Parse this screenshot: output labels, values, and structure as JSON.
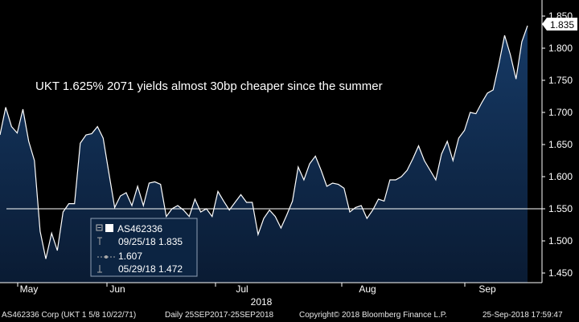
{
  "chart_data": {
    "type": "area",
    "annotation": "UKT 1.625% 2071 yields almost 30bp cheaper since the summer",
    "y_ticks": [
      "1.850",
      "1.800",
      "1.750",
      "1.700",
      "1.650",
      "1.600",
      "1.550",
      "1.500",
      "1.450"
    ],
    "ylim": [
      1.43,
      1.855
    ],
    "x_ticks": [
      "May",
      "Jun",
      "Jul",
      "Aug",
      "Sep"
    ],
    "year_label": "2018",
    "reference_line": 1.55,
    "last_value_label": "1.835",
    "legend": {
      "series_name": "AS462336",
      "high": "09/25/18 1.835",
      "mean": "1.607",
      "low": "05/29/18 1.472"
    },
    "series": [
      {
        "name": "AS462336",
        "values": [
          1.665,
          1.708,
          1.678,
          1.668,
          1.705,
          1.655,
          1.625,
          1.515,
          1.472,
          1.512,
          1.485,
          1.545,
          1.558,
          1.558,
          1.652,
          1.665,
          1.667,
          1.678,
          1.66,
          1.605,
          1.552,
          1.57,
          1.575,
          1.555,
          1.585,
          1.555,
          1.59,
          1.592,
          1.588,
          1.538,
          1.55,
          1.555,
          1.548,
          1.538,
          1.565,
          1.545,
          1.55,
          1.538,
          1.577,
          1.562,
          1.548,
          1.56,
          1.572,
          1.56,
          1.56,
          1.51,
          1.535,
          1.548,
          1.538,
          1.52,
          1.54,
          1.562,
          1.615,
          1.595,
          1.62,
          1.632,
          1.61,
          1.585,
          1.59,
          1.588,
          1.582,
          1.545,
          1.552,
          1.555,
          1.535,
          1.548,
          1.565,
          1.562,
          1.595,
          1.595,
          1.6,
          1.61,
          1.628,
          1.648,
          1.625,
          1.61,
          1.595,
          1.635,
          1.655,
          1.625,
          1.66,
          1.672,
          1.7,
          1.698,
          1.715,
          1.73,
          1.735,
          1.775,
          1.82,
          1.79,
          1.752,
          1.81,
          1.835
        ]
      }
    ],
    "colors": {
      "background": "#000000",
      "area_top": "#163a66",
      "area_bottom": "#0a1b33",
      "line": "#ffffff",
      "reference_line": "#ffffff",
      "legend_bg": "#0c2442"
    }
  },
  "footer": {
    "security": "AS462336 Corp (UKT 1 5/8 10/22/71)",
    "range": "Daily 25SEP2017-25SEP2018",
    "copyright": "Copyright© 2018 Bloomberg Finance L.P.",
    "timestamp": "25-Sep-2018 17:59:47"
  }
}
